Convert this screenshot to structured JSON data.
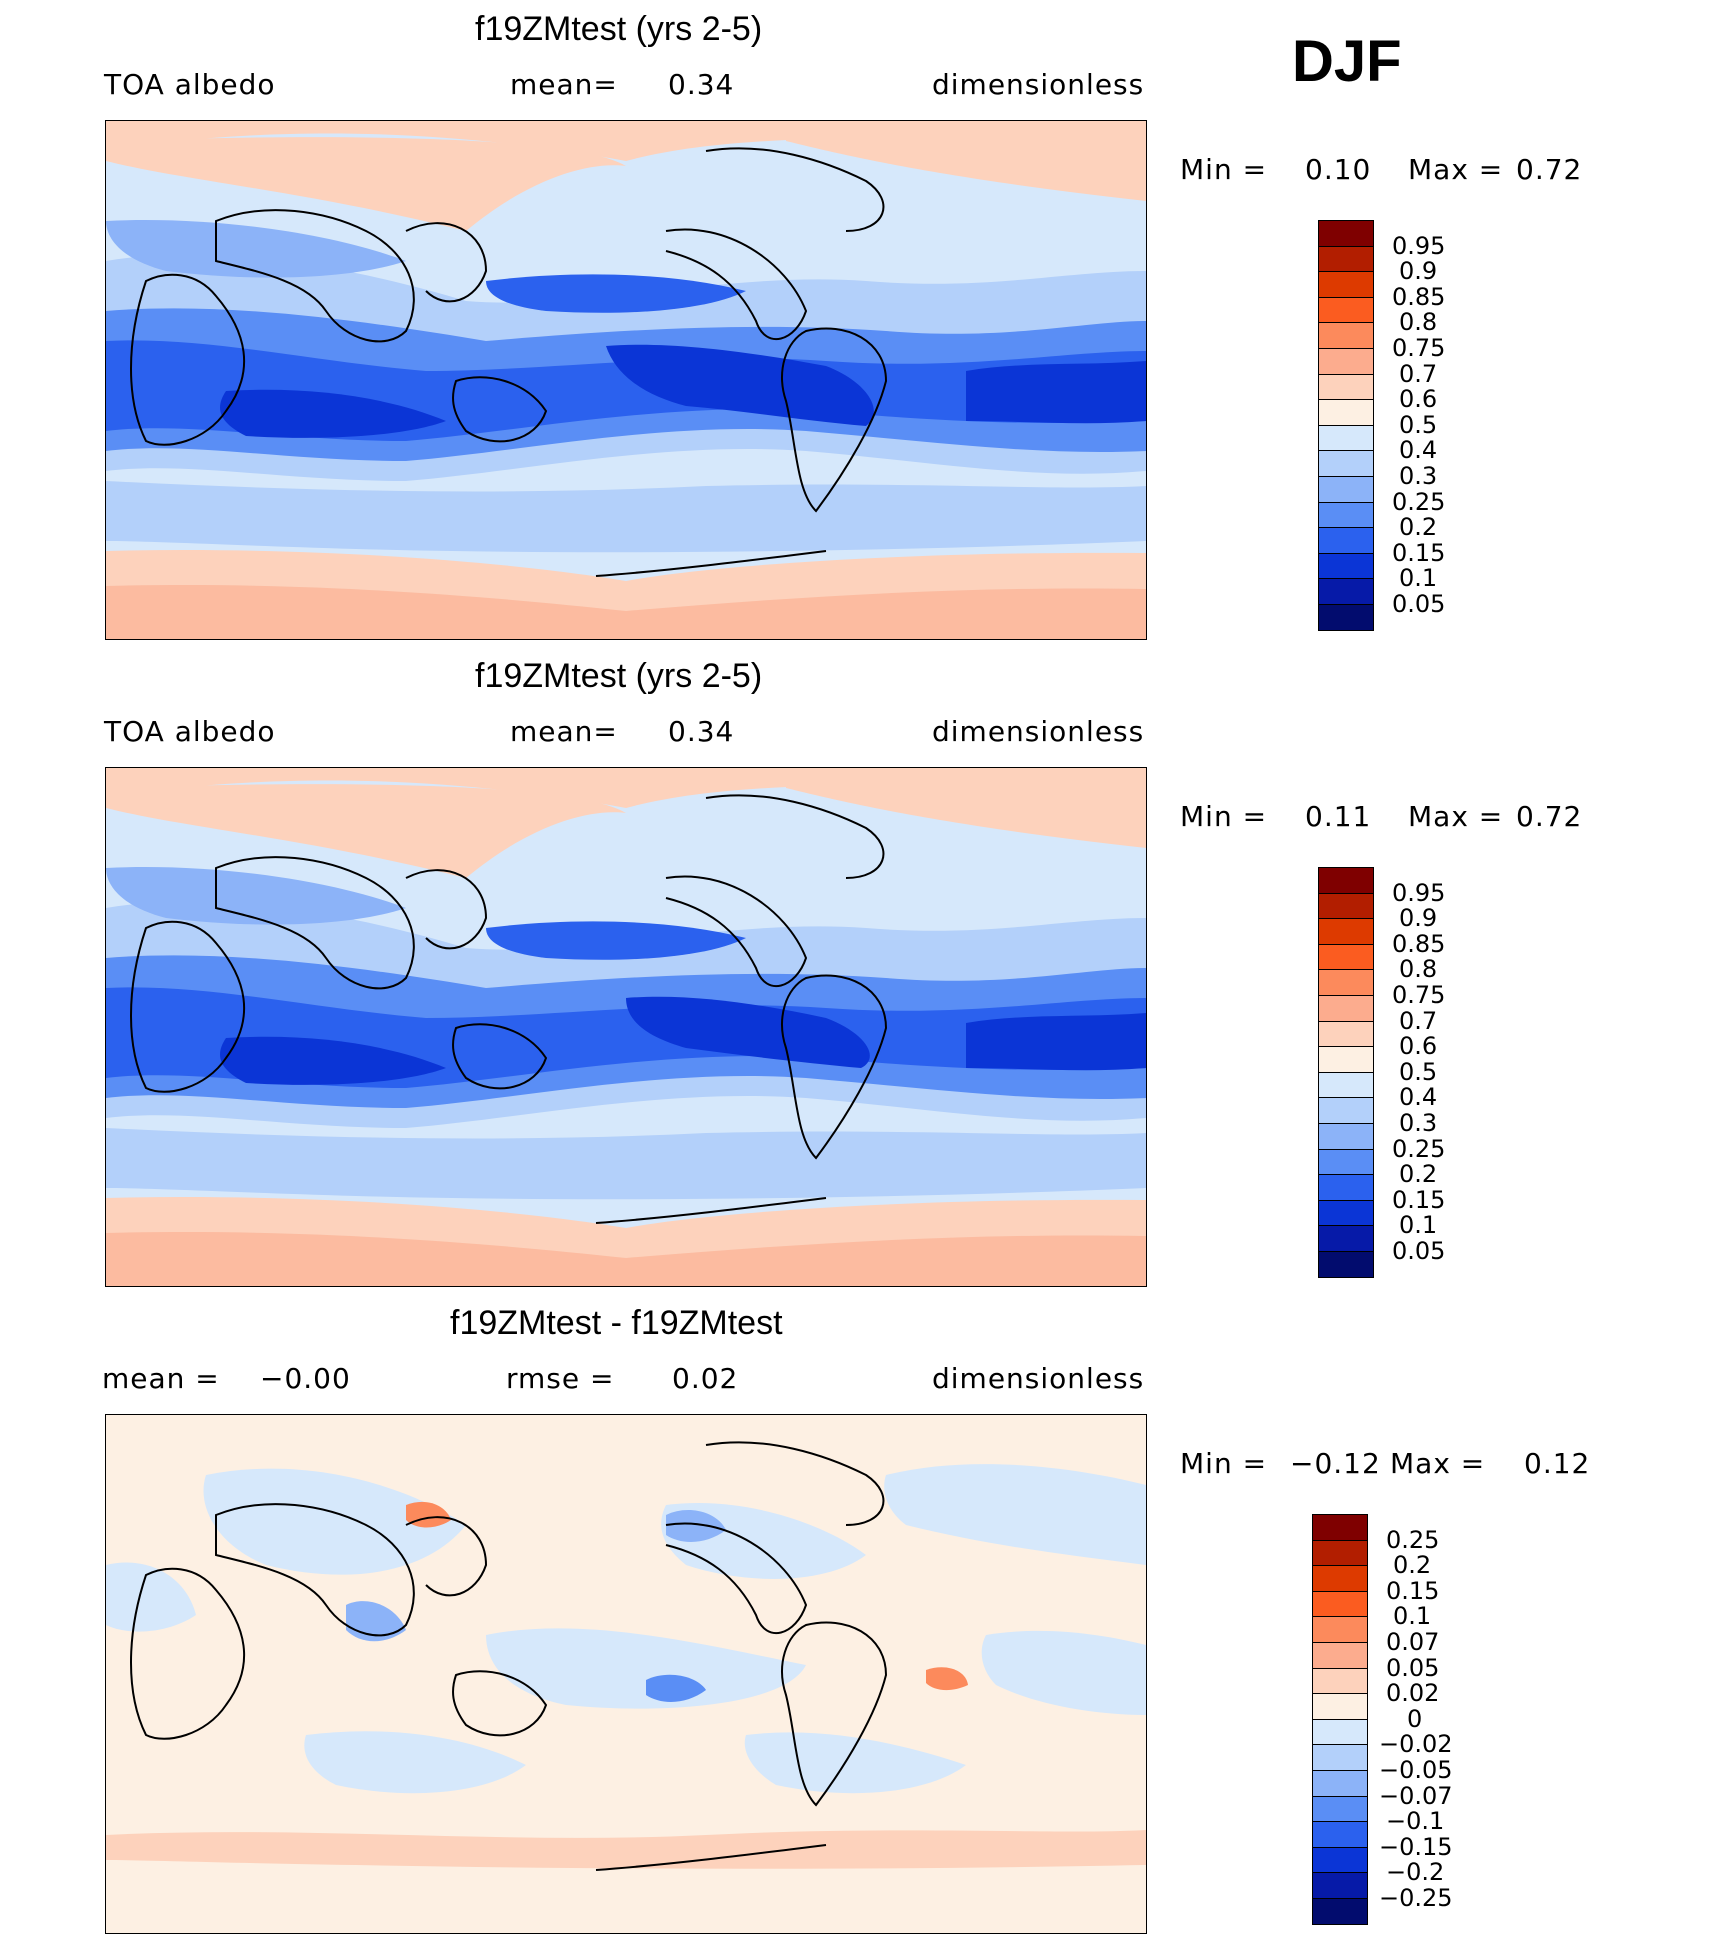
{
  "season": "DJF",
  "panels": [
    {
      "title": "f19ZMtest (yrs 2-5)",
      "left_label": "TOA  albedo",
      "center_label": "mean=",
      "center_value": "0.34",
      "right_label": "dimensionless",
      "min_label": "Min  =",
      "min_value": "0.10",
      "max_label": "Max  =",
      "max_value": "0.72",
      "colorbar_labels": [
        "0.95",
        "0.9",
        "0.85",
        "0.8",
        "0.75",
        "0.7",
        "0.6",
        "0.5",
        "0.4",
        "0.3",
        "0.25",
        "0.2",
        "0.15",
        "0.1",
        "0.05"
      ],
      "colors": [
        "#7f0000",
        "#b21e00",
        "#dd3a00",
        "#fb5c20",
        "#fc8a5c",
        "#fcac8e",
        "#fdd2bc",
        "#fdf0e3",
        "#d6e8fb",
        "#b3d0fa",
        "#8cb3f8",
        "#5a8ef5",
        "#2b61ee",
        "#0b35d6",
        "#061aa8",
        "#020c6e"
      ]
    },
    {
      "title": "f19ZMtest (yrs 2-5)",
      "left_label": "TOA  albedo",
      "center_label": "mean=",
      "center_value": "0.34",
      "right_label": "dimensionless",
      "min_label": "Min  =",
      "min_value": "0.11",
      "max_label": "Max  =",
      "max_value": "0.72",
      "colorbar_labels": [
        "0.95",
        "0.9",
        "0.85",
        "0.8",
        "0.75",
        "0.7",
        "0.6",
        "0.5",
        "0.4",
        "0.3",
        "0.25",
        "0.2",
        "0.15",
        "0.1",
        "0.05"
      ],
      "colors": [
        "#7f0000",
        "#b21e00",
        "#dd3a00",
        "#fb5c20",
        "#fc8a5c",
        "#fcac8e",
        "#fdd2bc",
        "#fdf0e3",
        "#d6e8fb",
        "#b3d0fa",
        "#8cb3f8",
        "#5a8ef5",
        "#2b61ee",
        "#0b35d6",
        "#061aa8",
        "#020c6e"
      ]
    },
    {
      "title": "f19ZMtest - f19ZMtest",
      "left_label": "mean  =",
      "left_value": "−0.00",
      "center_label": "rmse  =",
      "center_value": "0.02",
      "right_label": "dimensionless",
      "min_label": "Min  =",
      "min_value": "−0.12",
      "max_label": "Max  =",
      "max_value": "0.12",
      "colorbar_labels": [
        "0.25",
        "0.2",
        "0.15",
        "0.1",
        "0.07",
        "0.05",
        "0.02",
        "0",
        "−0.02",
        "−0.05",
        "−0.07",
        "−0.1",
        "−0.15",
        "−0.2",
        "−0.25"
      ],
      "colors": [
        "#7f0000",
        "#b21e00",
        "#dd3a00",
        "#fb5c20",
        "#fc8a5c",
        "#fcac8e",
        "#fdd2bc",
        "#fdf0e3",
        "#d6e8fb",
        "#b3d0fa",
        "#8cb3f8",
        "#5a8ef5",
        "#2b61ee",
        "#0b35d6",
        "#061aa8",
        "#020c6e"
      ]
    }
  ]
}
